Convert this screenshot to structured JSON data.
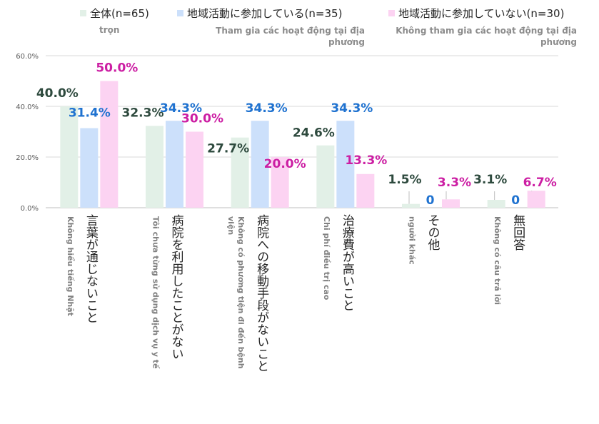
{
  "chart_data": {
    "type": "bar",
    "ylim": [
      0,
      60
    ],
    "yticks": [
      "0.0%",
      "20.0%",
      "40.0%",
      "60.0%"
    ],
    "ytick_values": [
      0,
      20,
      40,
      60
    ],
    "grid": true,
    "legend_position": "top",
    "categories": [
      {
        "ja": "言葉が通じないこと",
        "vi": "Không hiểu tiếng Nhật"
      },
      {
        "ja": "病院を利用したことがない",
        "vi": "Tôi chưa từng sử dụng dịch vụ y tế"
      },
      {
        "ja": "病院への移動手段がないこと",
        "vi": [
          "Không có phương tiện đi đến bệnh",
          "viện"
        ]
      },
      {
        "ja": "治療費が高いこと",
        "vi": "Chi phí điều trị cao"
      },
      {
        "ja": "その他",
        "vi": "người khác"
      },
      {
        "ja": "無回答",
        "vi": "Không có câu trả lời"
      }
    ],
    "series": [
      {
        "name_ja": "全体(n=65)",
        "name_vi": "trọn",
        "color": "#e2f0e7",
        "label_color": "#2e4a3e",
        "values": [
          40.0,
          32.3,
          27.7,
          24.6,
          1.5,
          3.1
        ],
        "labels": [
          "40.0%",
          "32.3%",
          "27.7%",
          "24.6%",
          "1.5%",
          "3.1%"
        ]
      },
      {
        "name_ja": "地域活動に参加している(n=35)",
        "name_vi": [
          "Tham gia các hoạt động tại địa",
          "phương"
        ],
        "color": "#cce0fb",
        "label_color": "#1f72d0",
        "values": [
          31.4,
          34.3,
          34.3,
          34.3,
          0,
          0
        ],
        "labels": [
          "31.4%",
          "34.3%",
          "34.3%",
          "34.3%",
          "0",
          "0"
        ]
      },
      {
        "name_ja": "地域活動に参加していない(n=30)",
        "name_vi": [
          "Không tham gia các hoạt động tại địa",
          "phương"
        ],
        "color": "#fcd3f2",
        "label_color": "#cc1ea3",
        "values": [
          50.0,
          30.0,
          20.0,
          13.3,
          3.3,
          6.7
        ],
        "labels": [
          "50.0%",
          "30.0%",
          "20.0%",
          "13.3%",
          "3.3%",
          "6.7%"
        ]
      }
    ]
  }
}
